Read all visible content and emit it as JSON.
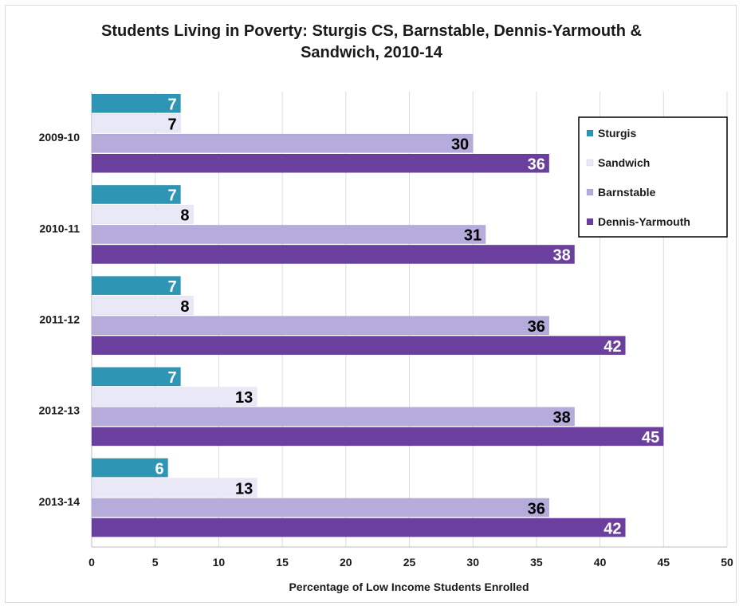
{
  "chart_data": {
    "type": "bar",
    "orientation": "horizontal",
    "title_lines": [
      "Students Living in Poverty: Sturgis CS, Barnstable, Dennis-Yarmouth &",
      "Sandwich, 2010-14"
    ],
    "categories": [
      "2009-10",
      "2010-11",
      "2011-12",
      "2012-13",
      "2013-14"
    ],
    "series": [
      {
        "name": "Sturgis",
        "values": [
          7,
          7,
          7,
          7,
          6
        ],
        "color": "#2e96b4",
        "label_color": "#ffffff"
      },
      {
        "name": "Sandwich",
        "values": [
          7,
          8,
          8,
          13,
          13
        ],
        "color": "#e9e8f6",
        "label_color": "#000000"
      },
      {
        "name": "Barnstable",
        "values": [
          30,
          31,
          36,
          38,
          36
        ],
        "color": "#b6acdb",
        "label_color": "#000000"
      },
      {
        "name": "Dennis-Yarmouth",
        "values": [
          36,
          38,
          42,
          45,
          42
        ],
        "color": "#6a3f9e",
        "label_color": "#ffffff"
      }
    ],
    "xlabel": "Percentage of Low Income Students Enrolled",
    "ylabel": "",
    "xlim": [
      0,
      50
    ],
    "xticks": [
      0,
      5,
      10,
      15,
      20,
      25,
      30,
      35,
      40,
      45,
      50
    ],
    "grid": true,
    "legend_position": "top-right"
  }
}
